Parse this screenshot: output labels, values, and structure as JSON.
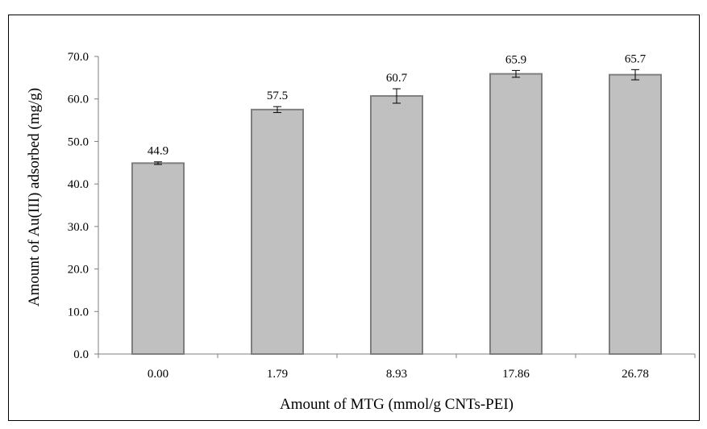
{
  "chart_data": {
    "type": "bar",
    "title": "",
    "xlabel": "Amount of MTG (mmol/g CNTs-PEI)",
    "ylabel": "Amount of Au(III)  adsorbed  (mg/g)",
    "categories": [
      "0.00",
      "1.79",
      "8.93",
      "17.86",
      "26.78"
    ],
    "values": [
      44.9,
      57.5,
      60.7,
      65.9,
      65.7
    ],
    "value_labels": [
      "44.9",
      "57.5",
      "60.7",
      "65.9",
      "65.7"
    ],
    "error": [
      0.3,
      0.7,
      1.7,
      0.8,
      1.2
    ],
    "ylim": [
      0,
      70
    ],
    "yticks": [
      0,
      10,
      20,
      30,
      40,
      50,
      60,
      70
    ],
    "ytick_labels": [
      "0.0",
      "10.0",
      "20.0",
      "30.0",
      "40.0",
      "50.0",
      "60.0",
      "70.0"
    ],
    "grid": false,
    "legend": "none",
    "colors": {
      "bar_fill": "#c0c0c0",
      "bar_stroke": "#7f7f7f",
      "axis": "#7f7f7f",
      "text": "#000000"
    }
  }
}
